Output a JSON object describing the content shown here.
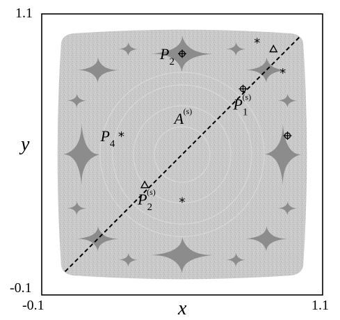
{
  "chart_data": {
    "type": "scatter",
    "title": "",
    "xlabel": "x",
    "ylabel": "y",
    "xlim": [
      -0.1,
      1.1
    ],
    "ylim": [
      -0.1,
      1.1
    ],
    "x_ticks": [
      "-0.1",
      "1.1"
    ],
    "y_ticks": [
      "1.1",
      "-0.1"
    ],
    "grid": false,
    "colors": {
      "chaotic_sea": "#c8c8c8",
      "islands": "#8c8c8c",
      "frame": "#000000"
    },
    "diagonal_line": {
      "x": [
        0.0,
        1.0
      ],
      "y": [
        0.0,
        1.0
      ],
      "style": "dashed"
    },
    "points": [
      {
        "id": "P2",
        "label": "P",
        "sub": "2",
        "sup": "",
        "x": 0.5,
        "y": 0.93,
        "marker": "crosshair-circle"
      },
      {
        "id": "P1s",
        "label": "P",
        "sub": "1",
        "sup": "(s)",
        "x": 0.76,
        "y": 0.78,
        "marker": "crosshair-circle"
      },
      {
        "id": "P_right",
        "label": "",
        "sub": "",
        "sup": "",
        "x": 0.95,
        "y": 0.58,
        "marker": "crosshair-circle"
      },
      {
        "id": "P2s",
        "label": "P",
        "sub": "2",
        "sup": "(s)",
        "x": 0.34,
        "y": 0.37,
        "marker": "triangle"
      },
      {
        "id": "tri_top",
        "label": "",
        "sub": "",
        "sup": "",
        "x": 0.89,
        "y": 0.95,
        "marker": "triangle"
      },
      {
        "id": "P4",
        "label": "P",
        "sub": "4",
        "sup": "",
        "x": 0.24,
        "y": 0.58,
        "marker": "asterisk"
      },
      {
        "id": "ast_top",
        "label": "",
        "sub": "",
        "sup": "",
        "x": 0.82,
        "y": 0.98,
        "marker": "asterisk"
      },
      {
        "id": "ast_right",
        "label": "",
        "sub": "",
        "sup": "",
        "x": 0.93,
        "y": 0.85,
        "marker": "asterisk"
      },
      {
        "id": "ast_bottom",
        "label": "",
        "sub": "",
        "sup": "",
        "x": 0.5,
        "y": 0.3,
        "marker": "asterisk"
      }
    ],
    "annotations": [
      {
        "id": "A",
        "label": "A",
        "sub": "",
        "sup": "(s)",
        "x": 0.49,
        "y": 0.66
      }
    ]
  }
}
